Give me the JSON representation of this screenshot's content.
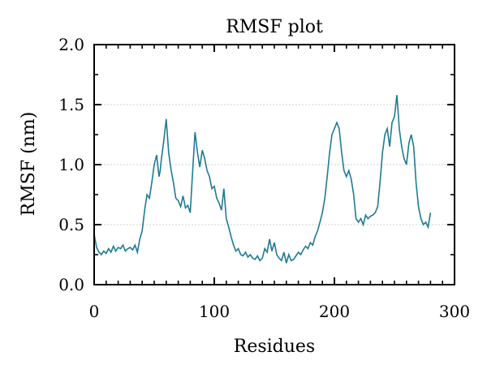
{
  "chart_data": {
    "type": "line",
    "title": "RMSF plot",
    "xlabel": "Residues",
    "ylabel": "RMSF (nm)",
    "xlim": [
      0,
      300
    ],
    "ylim": [
      0,
      2.0
    ],
    "x_ticks": [
      0,
      100,
      200,
      300
    ],
    "y_ticks": [
      0.0,
      0.5,
      1.0,
      1.5,
      2.0
    ],
    "x_tick_labels": [
      "0",
      "100",
      "200",
      "300"
    ],
    "y_tick_labels": [
      "0.0",
      "0.5",
      "1.0",
      "1.5",
      "2.0"
    ],
    "grid": "horizontal dotted",
    "legend": "none",
    "line_color": "#1f7a95",
    "series": [
      {
        "x": [
          0,
          2,
          4,
          6,
          8,
          10,
          12,
          14,
          16,
          18,
          20,
          22,
          24,
          26,
          28,
          30,
          32,
          34,
          36,
          38,
          40,
          42,
          44,
          46,
          48,
          50,
          52,
          54,
          55,
          56,
          58,
          60,
          62,
          64,
          66,
          68,
          70,
          72,
          74,
          76,
          78,
          80,
          82,
          84,
          86,
          88,
          90,
          92,
          94,
          96,
          98,
          100,
          102,
          104,
          106,
          108,
          110,
          112,
          114,
          116,
          118,
          120,
          122,
          124,
          126,
          128,
          130,
          132,
          134,
          136,
          138,
          140,
          142,
          144,
          146,
          148,
          150,
          152,
          154,
          156,
          158,
          160,
          162,
          164,
          166,
          168,
          170,
          172,
          174,
          176,
          178,
          180,
          182,
          184,
          186,
          188,
          190,
          192,
          194,
          196,
          198,
          200,
          202,
          204,
          206,
          208,
          210,
          212,
          214,
          216,
          218,
          220,
          222,
          224,
          226,
          228,
          230,
          232,
          234,
          236,
          238,
          240,
          242,
          244,
          246,
          248,
          250,
          252,
          253,
          254,
          256,
          258,
          260,
          262,
          264,
          266,
          268,
          270,
          272,
          274,
          276,
          278,
          280
        ],
        "values": [
          0.42,
          0.31,
          0.27,
          0.25,
          0.28,
          0.26,
          0.3,
          0.27,
          0.32,
          0.28,
          0.31,
          0.3,
          0.33,
          0.28,
          0.3,
          0.31,
          0.29,
          0.33,
          0.27,
          0.38,
          0.45,
          0.62,
          0.75,
          0.72,
          0.85,
          1.0,
          1.08,
          0.9,
          0.95,
          1.05,
          1.2,
          1.38,
          1.1,
          0.96,
          0.85,
          0.72,
          0.7,
          0.65,
          0.74,
          0.64,
          0.66,
          0.6,
          0.95,
          1.27,
          1.1,
          0.98,
          1.12,
          1.05,
          0.95,
          0.9,
          0.8,
          0.82,
          0.72,
          0.68,
          0.62,
          0.8,
          0.55,
          0.48,
          0.4,
          0.33,
          0.28,
          0.3,
          0.25,
          0.24,
          0.27,
          0.23,
          0.25,
          0.22,
          0.21,
          0.24,
          0.2,
          0.22,
          0.3,
          0.27,
          0.38,
          0.28,
          0.35,
          0.25,
          0.22,
          0.2,
          0.27,
          0.18,
          0.25,
          0.2,
          0.21,
          0.24,
          0.27,
          0.25,
          0.29,
          0.32,
          0.3,
          0.35,
          0.33,
          0.4,
          0.45,
          0.52,
          0.6,
          0.72,
          0.9,
          1.1,
          1.25,
          1.3,
          1.35,
          1.3,
          1.1,
          0.95,
          0.9,
          0.95,
          0.88,
          0.75,
          0.55,
          0.52,
          0.55,
          0.5,
          0.58,
          0.55,
          0.57,
          0.58,
          0.6,
          0.65,
          0.85,
          1.1,
          1.25,
          1.3,
          1.15,
          1.35,
          1.4,
          1.58,
          1.45,
          1.3,
          1.15,
          1.05,
          1.0,
          1.18,
          1.25,
          1.15,
          0.85,
          0.65,
          0.55,
          0.5,
          0.52,
          0.48,
          0.6
        ]
      }
    ]
  }
}
